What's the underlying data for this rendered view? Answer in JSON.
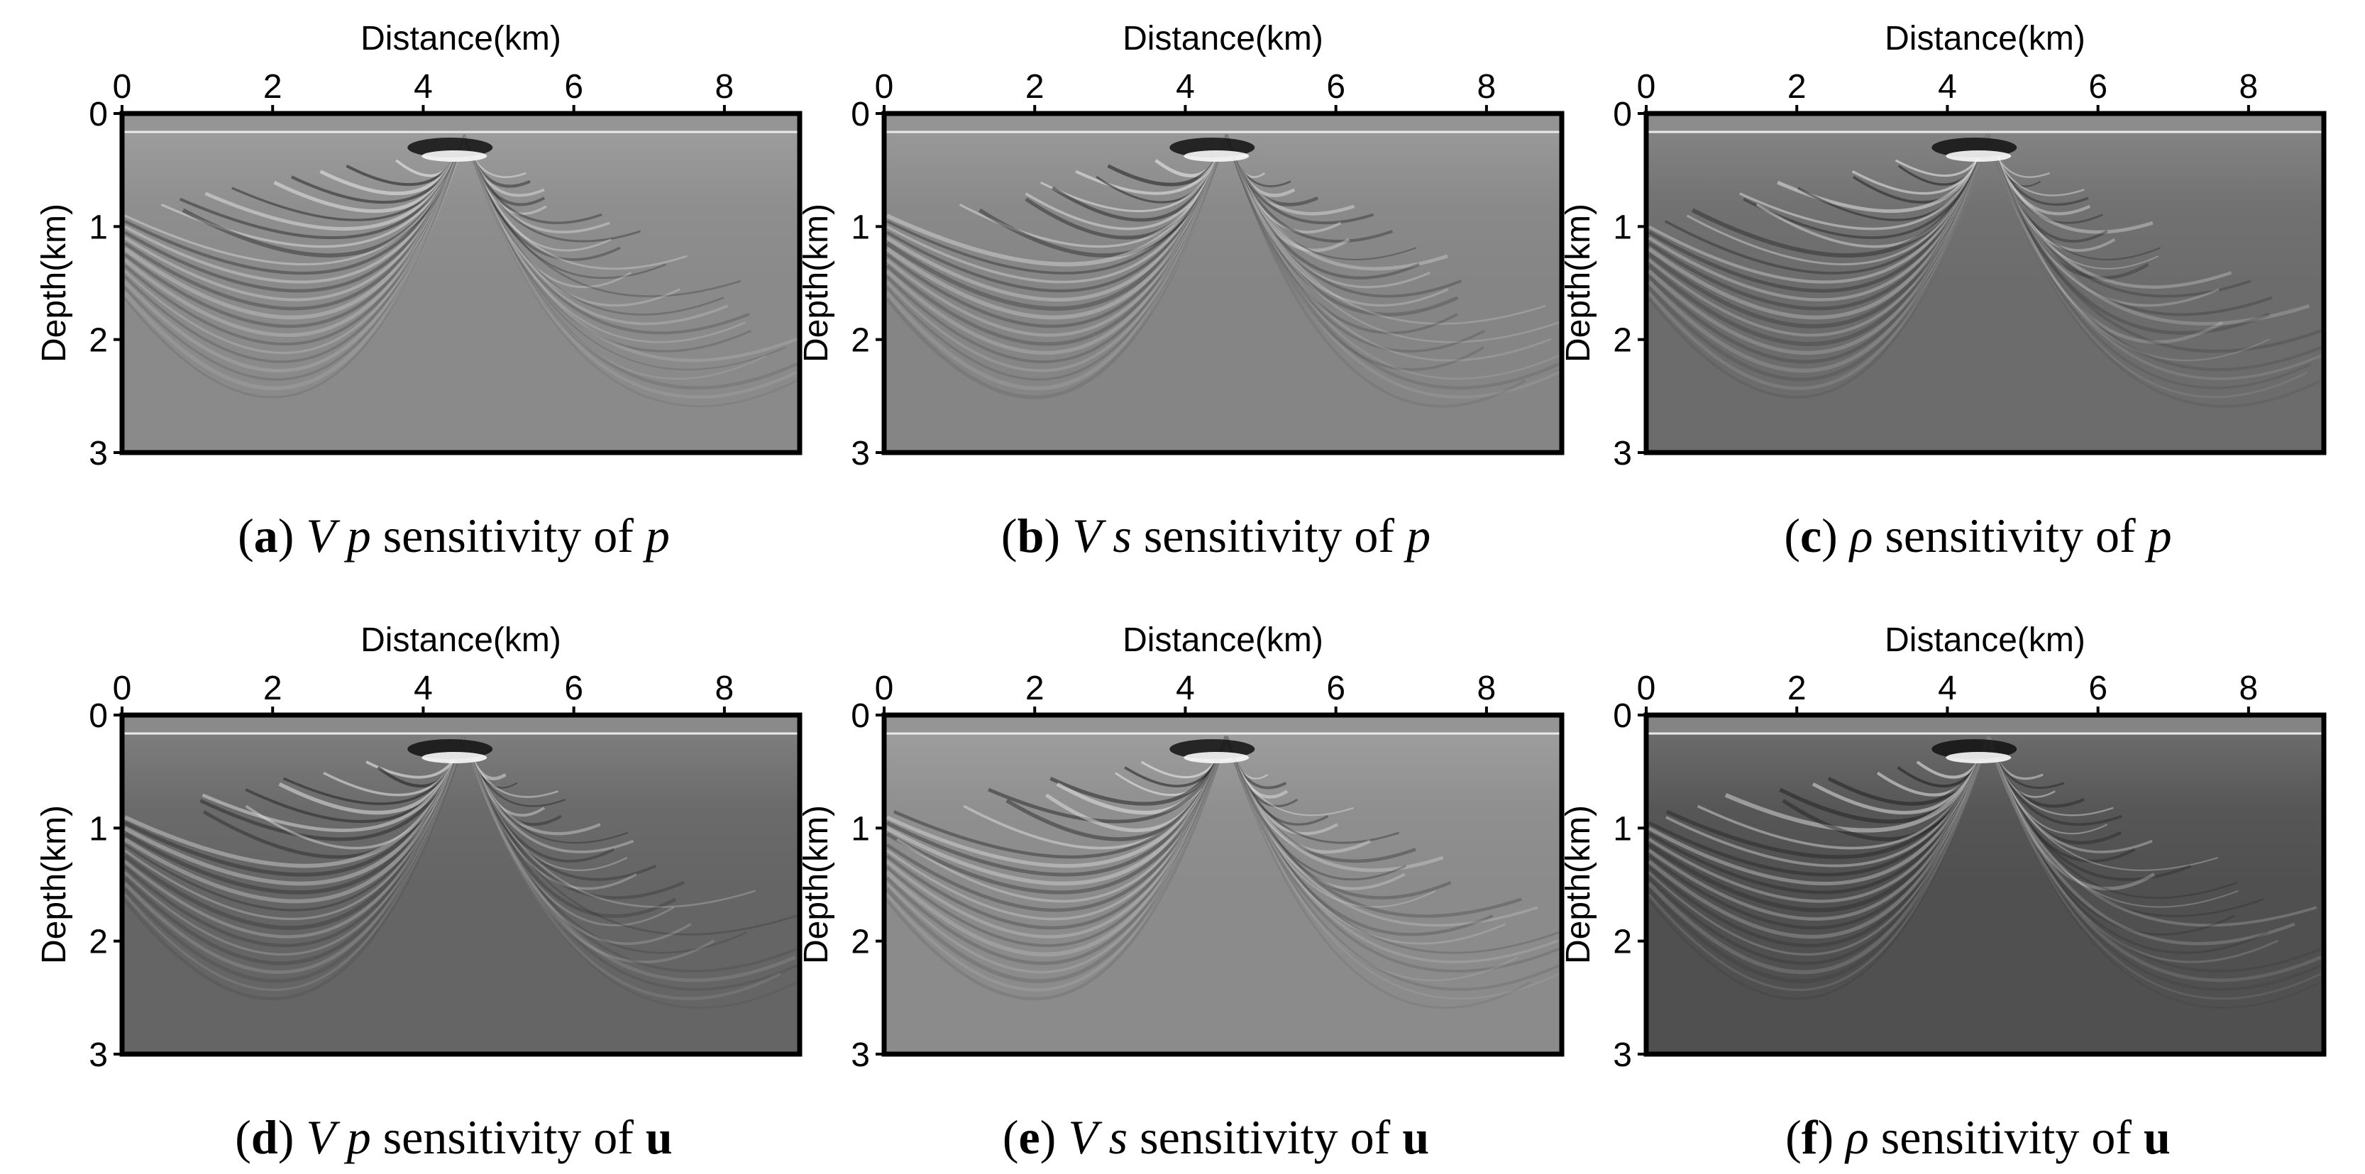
{
  "figure": {
    "panels": [
      {
        "id": "a",
        "letter": "a",
        "caption_math": "V p",
        "caption_text": " sensitivity of ",
        "caption_target": "p",
        "target_style": "italic",
        "x_axis_label": "Distance(km)",
        "y_axis_label": "Depth(km)",
        "x_ticks": [
          "0",
          "2",
          "4",
          "6",
          "8"
        ],
        "y_ticks": [
          "0",
          "1",
          "2",
          "3"
        ],
        "background_color": "#8a8a8a"
      },
      {
        "id": "b",
        "letter": "b",
        "caption_math": "V s",
        "caption_text": " sensitivity of ",
        "caption_target": "p",
        "target_style": "italic",
        "x_axis_label": "Distance(km)",
        "y_axis_label": "Depth(km)",
        "x_ticks": [
          "0",
          "2",
          "4",
          "6",
          "8"
        ],
        "y_ticks": [
          "0",
          "1",
          "2",
          "3"
        ],
        "background_color": "#858585"
      },
      {
        "id": "c",
        "letter": "c",
        "caption_math": "ρ",
        "caption_text": " sensitivity of ",
        "caption_target": "p",
        "target_style": "italic",
        "x_axis_label": "Distance(km)",
        "y_axis_label": "Depth(km)",
        "x_ticks": [
          "0",
          "2",
          "4",
          "6",
          "8"
        ],
        "y_ticks": [
          "0",
          "1",
          "2",
          "3"
        ],
        "background_color": "#6c6c6c"
      },
      {
        "id": "d",
        "letter": "d",
        "caption_math": "V p",
        "caption_text": " sensitivity of ",
        "caption_target": "u",
        "target_style": "bold",
        "x_axis_label": "Distance(km)",
        "y_axis_label": "Depth(km)",
        "x_ticks": [
          "0",
          "2",
          "4",
          "6",
          "8"
        ],
        "y_ticks": [
          "0",
          "1",
          "2",
          "3"
        ],
        "background_color": "#656565"
      },
      {
        "id": "e",
        "letter": "e",
        "caption_math": "V s",
        "caption_text": " sensitivity of ",
        "caption_target": "u",
        "target_style": "bold",
        "x_axis_label": "Distance(km)",
        "y_axis_label": "Depth(km)",
        "x_ticks": [
          "0",
          "2",
          "4",
          "6",
          "8"
        ],
        "y_ticks": [
          "0",
          "1",
          "2",
          "3"
        ],
        "background_color": "#8b8b8b"
      },
      {
        "id": "f",
        "letter": "f",
        "caption_math": "ρ",
        "caption_text": " sensitivity of ",
        "caption_target": "u",
        "target_style": "bold",
        "x_axis_label": "Distance(km)",
        "y_axis_label": "Depth(km)",
        "x_ticks": [
          "0",
          "2",
          "4",
          "6",
          "8"
        ],
        "y_ticks": [
          "0",
          "1",
          "2",
          "3"
        ],
        "background_color": "#505050"
      }
    ]
  }
}
